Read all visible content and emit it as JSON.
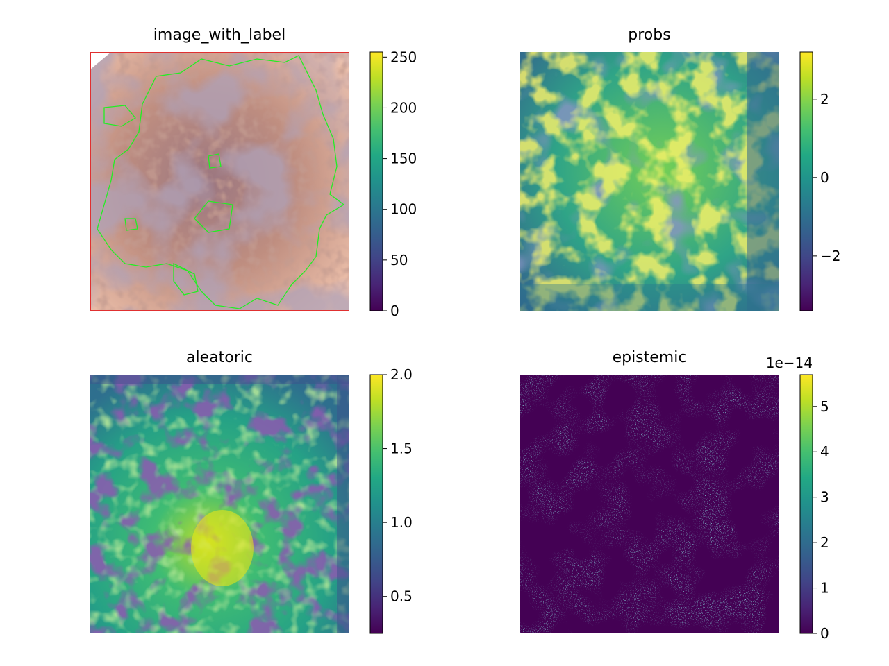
{
  "chart_data": [
    {
      "type": "heatmap",
      "title": "image_with_label",
      "colorbar": {
        "ticks": [
          0,
          50,
          100,
          150,
          200,
          250
        ],
        "labels": [
          "0",
          "50",
          "100",
          "150",
          "200",
          "250"
        ],
        "min": 0,
        "max": 255,
        "offset_text": ""
      },
      "colormap": "viridis",
      "content": "rgb-dermoscopy-with-contours",
      "contour_colors": {
        "label": "#22ee22",
        "border": "#e03030"
      }
    },
    {
      "type": "heatmap",
      "title": "probs",
      "colorbar": {
        "ticks": [
          2,
          0,
          -2
        ],
        "labels": [
          "2",
          "0",
          "−2"
        ],
        "min": -3.4,
        "max": 3.2,
        "offset_text": ""
      },
      "colormap": "viridis"
    },
    {
      "type": "heatmap",
      "title": "aleatoric",
      "colorbar": {
        "ticks": [
          2.0,
          1.5,
          1.0,
          0.5
        ],
        "labels": [
          "2.0",
          "1.5",
          "1.0",
          "0.5"
        ],
        "min": 0.25,
        "max": 2.0,
        "offset_text": ""
      },
      "colormap": "viridis"
    },
    {
      "type": "heatmap",
      "title": "epistemic",
      "colorbar": {
        "ticks": [
          5,
          4,
          3,
          2,
          1,
          0
        ],
        "labels": [
          "5",
          "4",
          "3",
          "2",
          "1",
          "0"
        ],
        "min": 0,
        "max": 5.7,
        "offset_text": "1e−14"
      },
      "colormap": "viridis"
    }
  ]
}
